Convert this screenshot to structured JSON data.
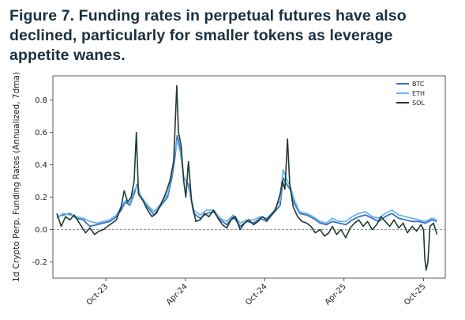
{
  "figure_title": "Figure 7. Funding rates in perpetual futures have also declined, particularly for smaller tokens as leverage appetite wanes.",
  "chart_data": {
    "type": "line",
    "title": "",
    "xlabel": "",
    "ylabel": "1d Crypto Perp. Funding Rates (Annualized, 7dma)",
    "ylim": [
      -0.3,
      0.95
    ],
    "xlim": [
      "2023-06-01",
      "2025-11-20"
    ],
    "y_ticks": [
      -0.2,
      0.0,
      0.2,
      0.4,
      0.6,
      0.8
    ],
    "y_tick_labels": [
      "-0.2",
      "0.0",
      "0.2",
      "0.4",
      "0.6",
      "0.8"
    ],
    "x_ticks": [
      "2023-10-01",
      "2024-04-01",
      "2024-10-01",
      "2025-04-01",
      "2025-10-01"
    ],
    "x_tick_labels": [
      "Oct-23",
      "Apr-24",
      "Oct-24",
      "Apr-25",
      "Oct-25"
    ],
    "zero_line": true,
    "grid": false,
    "legend_position": "top-right",
    "series": [
      {
        "name": "BTC",
        "color": "#3b6fc2",
        "points": [
          [
            "2023-06-10",
            0.08
          ],
          [
            "2023-06-25",
            0.09
          ],
          [
            "2023-07-10",
            0.1
          ],
          [
            "2023-07-25",
            0.07
          ],
          [
            "2023-08-10",
            0.06
          ],
          [
            "2023-08-25",
            0.02
          ],
          [
            "2023-09-10",
            0.03
          ],
          [
            "2023-09-25",
            0.04
          ],
          [
            "2023-10-10",
            0.05
          ],
          [
            "2023-10-25",
            0.08
          ],
          [
            "2023-11-05",
            0.12
          ],
          [
            "2023-11-15",
            0.17
          ],
          [
            "2023-11-25",
            0.15
          ],
          [
            "2023-12-05",
            0.22
          ],
          [
            "2023-12-12",
            0.28
          ],
          [
            "2023-12-20",
            0.2
          ],
          [
            "2024-01-05",
            0.14
          ],
          [
            "2024-01-20",
            0.09
          ],
          [
            "2024-02-05",
            0.15
          ],
          [
            "2024-02-20",
            0.2
          ],
          [
            "2024-03-01",
            0.32
          ],
          [
            "2024-03-08",
            0.45
          ],
          [
            "2024-03-13",
            0.58
          ],
          [
            "2024-03-20",
            0.5
          ],
          [
            "2024-03-28",
            0.32
          ],
          [
            "2024-04-08",
            0.28
          ],
          [
            "2024-04-20",
            0.1
          ],
          [
            "2024-05-05",
            0.07
          ],
          [
            "2024-05-20",
            0.1
          ],
          [
            "2024-06-05",
            0.11
          ],
          [
            "2024-06-20",
            0.06
          ],
          [
            "2024-07-05",
            0.03
          ],
          [
            "2024-07-20",
            0.08
          ],
          [
            "2024-08-05",
            0.02
          ],
          [
            "2024-08-20",
            0.05
          ],
          [
            "2024-09-05",
            0.04
          ],
          [
            "2024-09-20",
            0.07
          ],
          [
            "2024-10-05",
            0.05
          ],
          [
            "2024-10-20",
            0.1
          ],
          [
            "2024-11-05",
            0.15
          ],
          [
            "2024-11-12",
            0.32
          ],
          [
            "2024-11-20",
            0.28
          ],
          [
            "2024-11-28",
            0.25
          ],
          [
            "2024-12-08",
            0.16
          ],
          [
            "2024-12-20",
            0.1
          ],
          [
            "2025-01-05",
            0.09
          ],
          [
            "2025-01-20",
            0.07
          ],
          [
            "2025-02-05",
            0.04
          ],
          [
            "2025-02-20",
            0.03
          ],
          [
            "2025-03-05",
            0.05
          ],
          [
            "2025-03-20",
            0.04
          ],
          [
            "2025-04-05",
            0.03
          ],
          [
            "2025-04-20",
            0.06
          ],
          [
            "2025-05-05",
            0.08
          ],
          [
            "2025-05-20",
            0.09
          ],
          [
            "2025-06-05",
            0.07
          ],
          [
            "2025-06-20",
            0.05
          ],
          [
            "2025-07-05",
            0.08
          ],
          [
            "2025-07-20",
            0.1
          ],
          [
            "2025-08-05",
            0.07
          ],
          [
            "2025-08-20",
            0.06
          ],
          [
            "2025-09-05",
            0.05
          ],
          [
            "2025-09-20",
            0.05
          ],
          [
            "2025-10-05",
            0.04
          ],
          [
            "2025-10-20",
            0.06
          ],
          [
            "2025-11-01",
            0.05
          ]
        ]
      },
      {
        "name": "ETH",
        "color": "#6ab7ec",
        "points": [
          [
            "2023-06-10",
            0.07
          ],
          [
            "2023-06-25",
            0.1
          ],
          [
            "2023-07-10",
            0.09
          ],
          [
            "2023-07-25",
            0.08
          ],
          [
            "2023-08-10",
            0.07
          ],
          [
            "2023-08-25",
            0.05
          ],
          [
            "2023-09-10",
            0.04
          ],
          [
            "2023-09-25",
            0.05
          ],
          [
            "2023-10-10",
            0.06
          ],
          [
            "2023-10-25",
            0.09
          ],
          [
            "2023-11-05",
            0.14
          ],
          [
            "2023-11-15",
            0.18
          ],
          [
            "2023-11-25",
            0.16
          ],
          [
            "2023-12-05",
            0.24
          ],
          [
            "2023-12-12",
            0.27
          ],
          [
            "2023-12-20",
            0.21
          ],
          [
            "2024-01-05",
            0.15
          ],
          [
            "2024-01-20",
            0.11
          ],
          [
            "2024-02-05",
            0.16
          ],
          [
            "2024-02-20",
            0.22
          ],
          [
            "2024-03-01",
            0.35
          ],
          [
            "2024-03-08",
            0.48
          ],
          [
            "2024-03-13",
            0.55
          ],
          [
            "2024-03-20",
            0.48
          ],
          [
            "2024-03-28",
            0.33
          ],
          [
            "2024-04-08",
            0.26
          ],
          [
            "2024-04-20",
            0.12
          ],
          [
            "2024-05-05",
            0.09
          ],
          [
            "2024-05-20",
            0.12
          ],
          [
            "2024-06-05",
            0.12
          ],
          [
            "2024-06-20",
            0.07
          ],
          [
            "2024-07-05",
            0.05
          ],
          [
            "2024-07-20",
            0.09
          ],
          [
            "2024-08-05",
            0.04
          ],
          [
            "2024-08-20",
            0.06
          ],
          [
            "2024-09-05",
            0.06
          ],
          [
            "2024-09-20",
            0.08
          ],
          [
            "2024-10-05",
            0.07
          ],
          [
            "2024-10-20",
            0.11
          ],
          [
            "2024-11-05",
            0.18
          ],
          [
            "2024-11-12",
            0.37
          ],
          [
            "2024-11-20",
            0.31
          ],
          [
            "2024-11-28",
            0.27
          ],
          [
            "2024-12-08",
            0.18
          ],
          [
            "2024-12-20",
            0.11
          ],
          [
            "2025-01-05",
            0.1
          ],
          [
            "2025-01-20",
            0.08
          ],
          [
            "2025-02-05",
            0.05
          ],
          [
            "2025-02-20",
            0.04
          ],
          [
            "2025-03-05",
            0.07
          ],
          [
            "2025-03-20",
            0.05
          ],
          [
            "2025-04-05",
            0.05
          ],
          [
            "2025-04-20",
            0.08
          ],
          [
            "2025-05-05",
            0.1
          ],
          [
            "2025-05-20",
            0.11
          ],
          [
            "2025-06-05",
            0.08
          ],
          [
            "2025-06-20",
            0.07
          ],
          [
            "2025-07-05",
            0.1
          ],
          [
            "2025-07-20",
            0.12
          ],
          [
            "2025-08-05",
            0.09
          ],
          [
            "2025-08-20",
            0.08
          ],
          [
            "2025-09-05",
            0.07
          ],
          [
            "2025-09-20",
            0.06
          ],
          [
            "2025-10-05",
            0.05
          ],
          [
            "2025-10-20",
            0.07
          ],
          [
            "2025-11-01",
            0.06
          ]
        ]
      },
      {
        "name": "SOL",
        "color": "#1f3a2e",
        "points": [
          [
            "2023-06-10",
            0.1
          ],
          [
            "2023-06-20",
            0.02
          ],
          [
            "2023-06-30",
            0.08
          ],
          [
            "2023-07-10",
            0.06
          ],
          [
            "2023-07-20",
            0.09
          ],
          [
            "2023-08-01",
            0.04
          ],
          [
            "2023-08-15",
            -0.02
          ],
          [
            "2023-08-25",
            0.01
          ],
          [
            "2023-09-05",
            -0.03
          ],
          [
            "2023-09-15",
            -0.01
          ],
          [
            "2023-09-25",
            0.0
          ],
          [
            "2023-10-05",
            0.02
          ],
          [
            "2023-10-15",
            0.04
          ],
          [
            "2023-10-25",
            0.06
          ],
          [
            "2023-11-05",
            0.14
          ],
          [
            "2023-11-12",
            0.24
          ],
          [
            "2023-11-20",
            0.17
          ],
          [
            "2023-11-28",
            0.2
          ],
          [
            "2023-12-05",
            0.3
          ],
          [
            "2023-12-10",
            0.6
          ],
          [
            "2023-12-15",
            0.22
          ],
          [
            "2023-12-25",
            0.18
          ],
          [
            "2024-01-05",
            0.12
          ],
          [
            "2024-01-15",
            0.08
          ],
          [
            "2024-01-25",
            0.1
          ],
          [
            "2024-02-05",
            0.16
          ],
          [
            "2024-02-15",
            0.22
          ],
          [
            "2024-02-25",
            0.3
          ],
          [
            "2024-03-05",
            0.42
          ],
          [
            "2024-03-12",
            0.89
          ],
          [
            "2024-03-16",
            0.6
          ],
          [
            "2024-03-22",
            0.52
          ],
          [
            "2024-03-28",
            0.3
          ],
          [
            "2024-04-02",
            0.2
          ],
          [
            "2024-04-08",
            0.42
          ],
          [
            "2024-04-15",
            0.18
          ],
          [
            "2024-04-25",
            0.05
          ],
          [
            "2024-05-05",
            0.06
          ],
          [
            "2024-05-15",
            0.1
          ],
          [
            "2024-05-25",
            0.08
          ],
          [
            "2024-06-05",
            0.12
          ],
          [
            "2024-06-15",
            0.07
          ],
          [
            "2024-06-25",
            0.03
          ],
          [
            "2024-07-05",
            0.01
          ],
          [
            "2024-07-15",
            0.06
          ],
          [
            "2024-07-25",
            0.08
          ],
          [
            "2024-08-05",
            0.0
          ],
          [
            "2024-08-15",
            0.04
          ],
          [
            "2024-08-25",
            0.06
          ],
          [
            "2024-09-05",
            0.03
          ],
          [
            "2024-09-15",
            0.05
          ],
          [
            "2024-09-25",
            0.08
          ],
          [
            "2024-10-05",
            0.06
          ],
          [
            "2024-10-15",
            0.09
          ],
          [
            "2024-10-25",
            0.12
          ],
          [
            "2024-11-05",
            0.22
          ],
          [
            "2024-11-10",
            0.3
          ],
          [
            "2024-11-16",
            0.25
          ],
          [
            "2024-11-22",
            0.56
          ],
          [
            "2024-11-27",
            0.28
          ],
          [
            "2024-12-05",
            0.14
          ],
          [
            "2024-12-15",
            0.08
          ],
          [
            "2024-12-25",
            0.05
          ],
          [
            "2025-01-05",
            0.04
          ],
          [
            "2025-01-15",
            0.02
          ],
          [
            "2025-01-25",
            -0.02
          ],
          [
            "2025-02-05",
            0.0
          ],
          [
            "2025-02-15",
            -0.04
          ],
          [
            "2025-02-25",
            -0.02
          ],
          [
            "2025-03-05",
            0.02
          ],
          [
            "2025-03-15",
            -0.03
          ],
          [
            "2025-03-25",
            0.0
          ],
          [
            "2025-04-05",
            -0.05
          ],
          [
            "2025-04-15",
            0.01
          ],
          [
            "2025-04-25",
            0.04
          ],
          [
            "2025-05-05",
            0.06
          ],
          [
            "2025-05-15",
            0.02
          ],
          [
            "2025-05-25",
            0.05
          ],
          [
            "2025-06-05",
            0.0
          ],
          [
            "2025-06-15",
            0.03
          ],
          [
            "2025-06-25",
            0.08
          ],
          [
            "2025-07-05",
            0.05
          ],
          [
            "2025-07-15",
            0.02
          ],
          [
            "2025-07-25",
            0.06
          ],
          [
            "2025-08-05",
            0.01
          ],
          [
            "2025-08-15",
            0.04
          ],
          [
            "2025-08-25",
            -0.02
          ],
          [
            "2025-09-05",
            0.02
          ],
          [
            "2025-09-15",
            -0.01
          ],
          [
            "2025-09-25",
            0.03
          ],
          [
            "2025-10-01",
            0.0
          ],
          [
            "2025-10-04",
            -0.18
          ],
          [
            "2025-10-07",
            -0.25
          ],
          [
            "2025-10-11",
            -0.2
          ],
          [
            "2025-10-16",
            0.02
          ],
          [
            "2025-10-24",
            0.04
          ],
          [
            "2025-11-01",
            -0.03
          ]
        ]
      }
    ]
  }
}
